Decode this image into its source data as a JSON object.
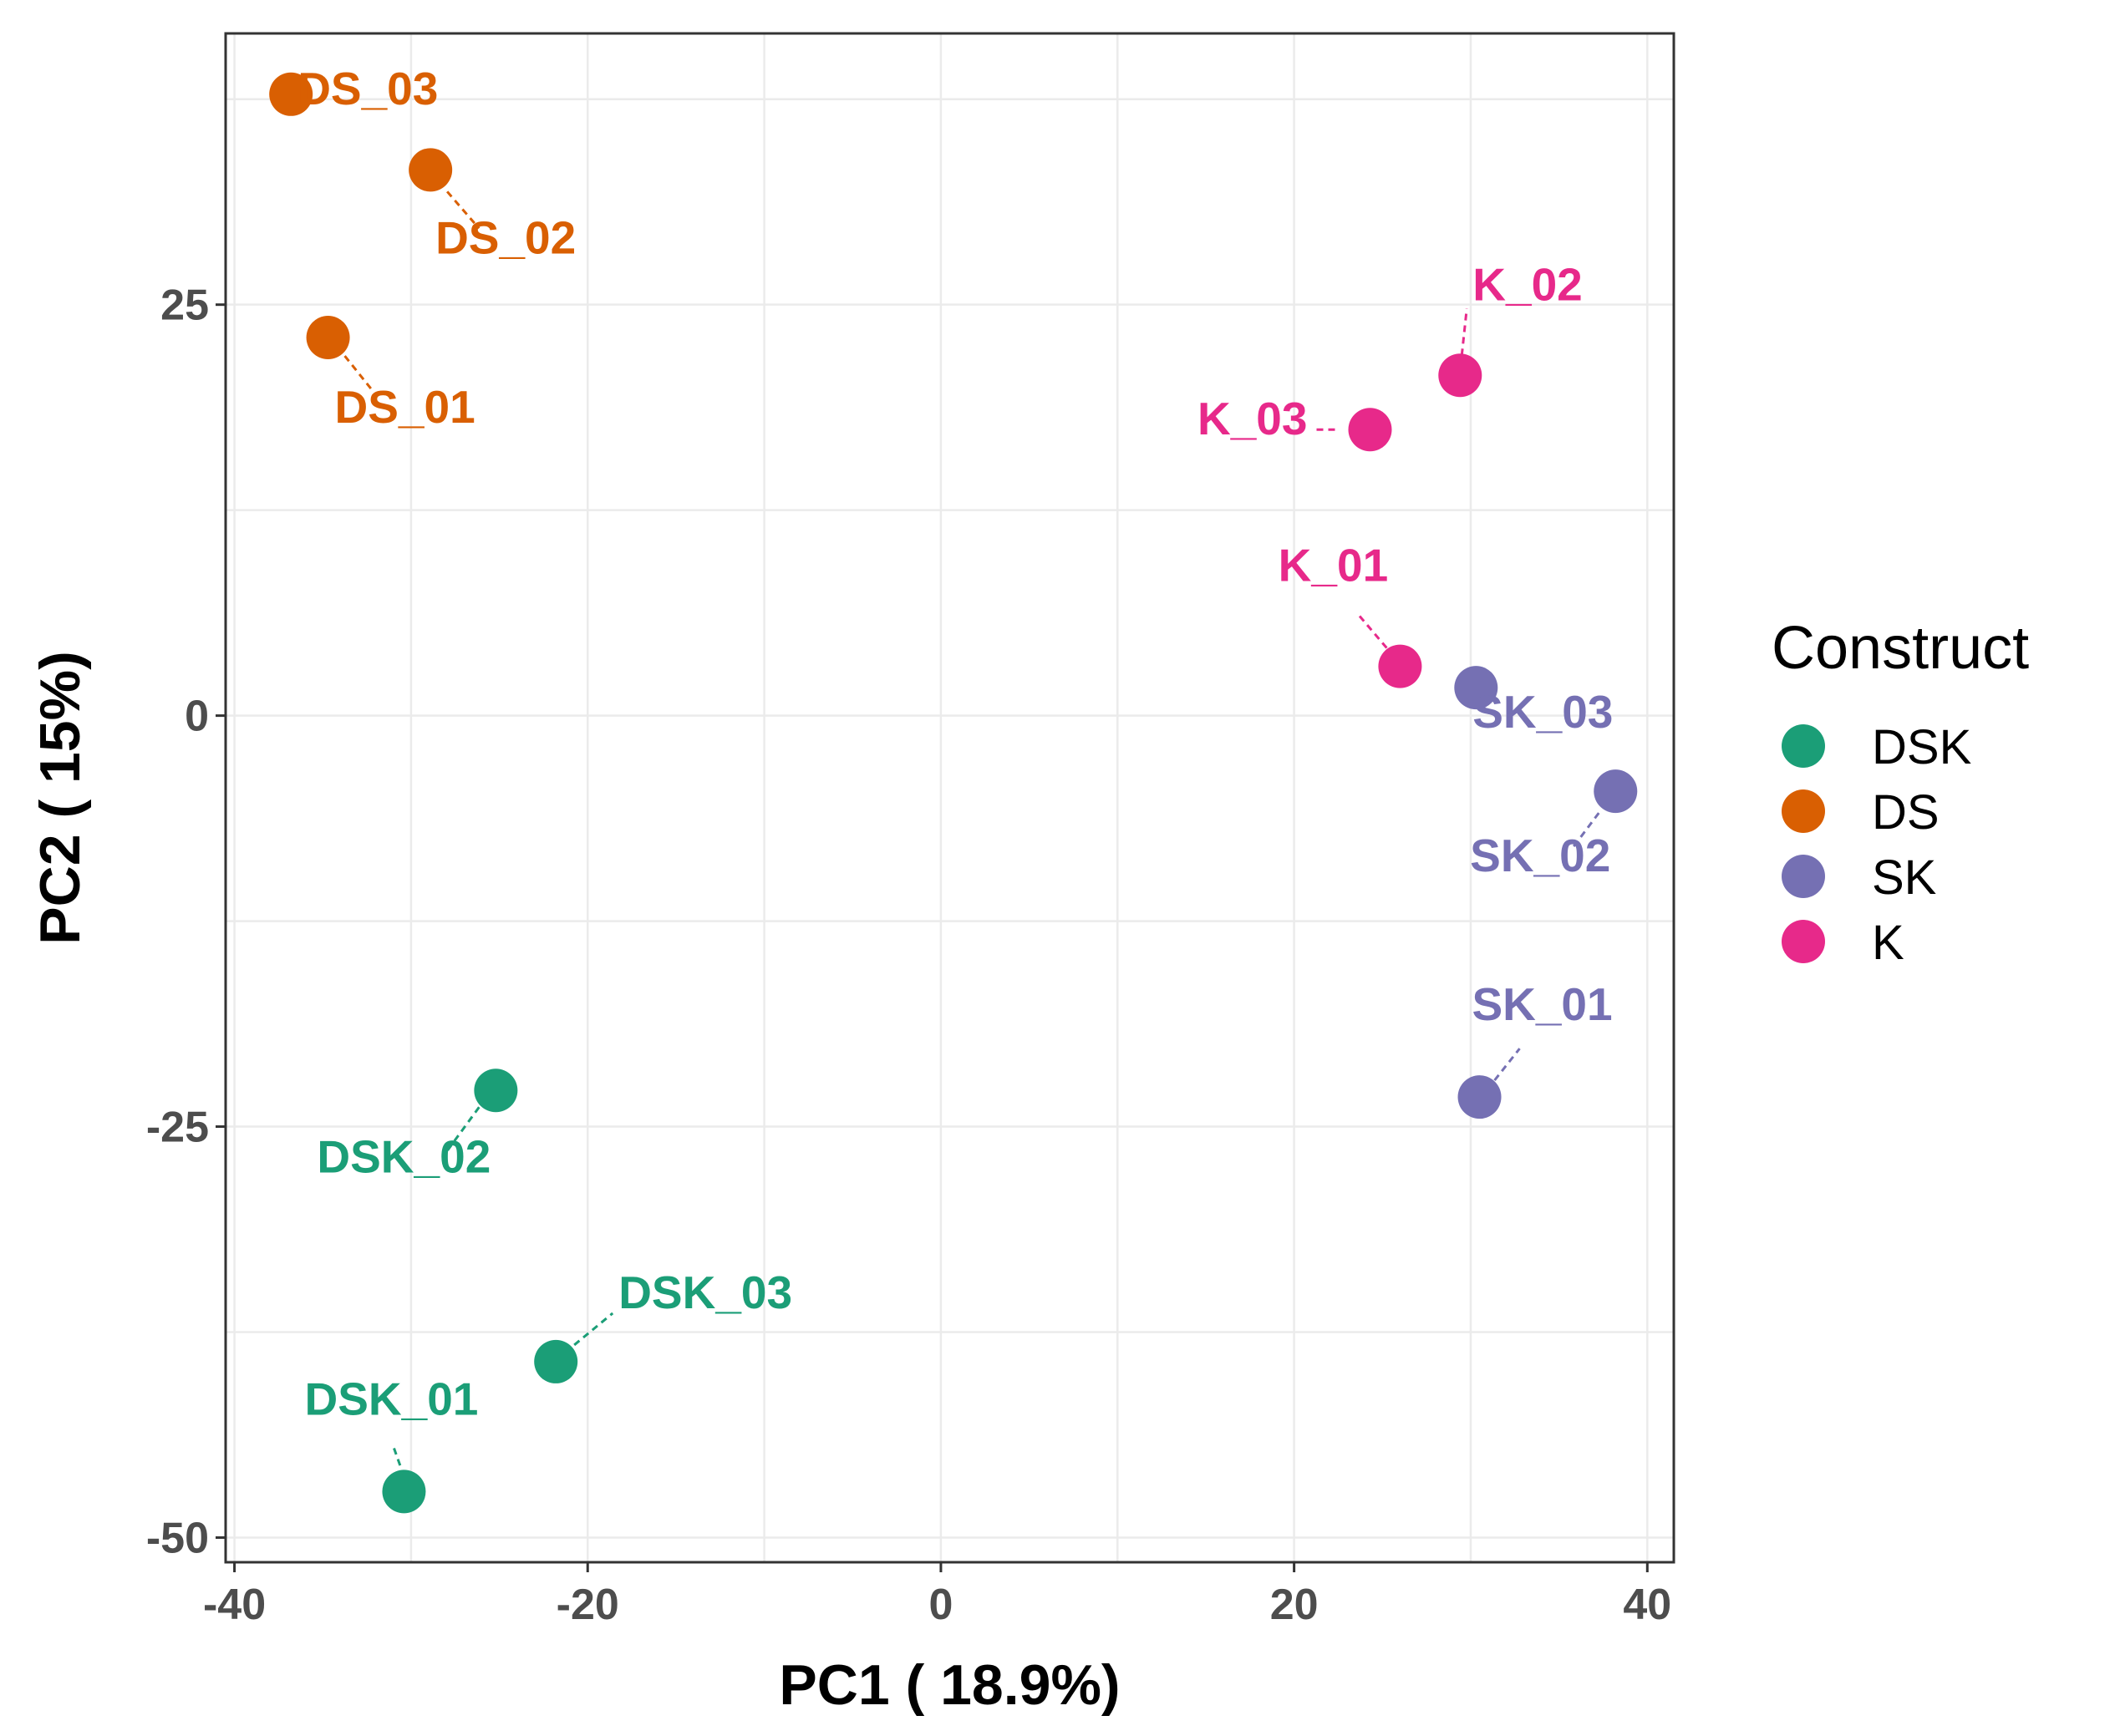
{
  "chart_data": {
    "type": "scatter",
    "xlabel": "PC1 ( 18.9%)",
    "ylabel": "PC2 ( 15%)",
    "xlim": [
      -40.5,
      41.5
    ],
    "ylim": [
      -51.5,
      41.5
    ],
    "x_ticks": [
      -40,
      -20,
      0,
      20,
      40
    ],
    "x_tick_labels": [
      "-40",
      "-20",
      "0",
      "20",
      "40"
    ],
    "y_ticks": [
      -50,
      -25,
      0,
      25
    ],
    "y_tick_labels": [
      "-50",
      "-25",
      "0",
      "25"
    ],
    "grid": true,
    "legend": {
      "title": "Construct",
      "placement": "right",
      "entries": [
        {
          "name": "DSK",
          "color": "#1b9e77"
        },
        {
          "name": "DS",
          "color": "#d95f02"
        },
        {
          "name": "SK",
          "color": "#7570b3"
        },
        {
          "name": "K",
          "color": "#e7298a"
        }
      ]
    },
    "points": [
      {
        "label": "DSK_01",
        "group": "DSK",
        "x": -30.4,
        "y": -47.2
      },
      {
        "label": "DSK_02",
        "group": "DSK",
        "x": -25.2,
        "y": -22.8
      },
      {
        "label": "DSK_03",
        "group": "DSK",
        "x": -21.8,
        "y": -39.3
      },
      {
        "label": "DS_01",
        "group": "DS",
        "x": -34.7,
        "y": 23.0
      },
      {
        "label": "DS_02",
        "group": "DS",
        "x": -28.9,
        "y": 33.2
      },
      {
        "label": "DS_03",
        "group": "DS",
        "x": -36.8,
        "y": 37.8
      },
      {
        "label": "SK_01",
        "group": "SK",
        "x": 30.5,
        "y": -23.2
      },
      {
        "label": "SK_02",
        "group": "SK",
        "x": 38.2,
        "y": -4.6
      },
      {
        "label": "SK_03",
        "group": "SK",
        "x": 30.3,
        "y": 1.7
      },
      {
        "label": "K_01",
        "group": "K",
        "x": 26.0,
        "y": 3.0
      },
      {
        "label": "K_02",
        "group": "K",
        "x": 29.4,
        "y": 20.7
      },
      {
        "label": "K_03",
        "group": "K",
        "x": 24.3,
        "y": 17.4
      }
    ]
  }
}
